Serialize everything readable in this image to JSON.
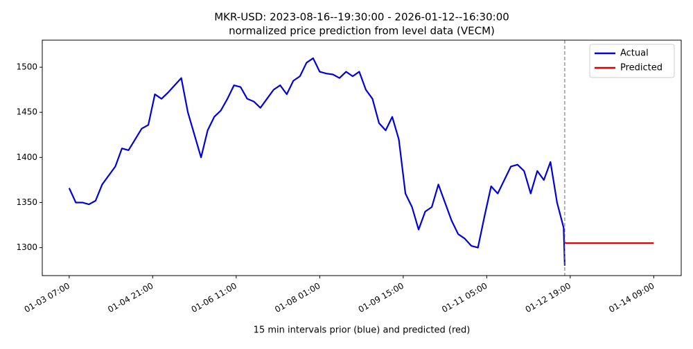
{
  "chart_data": {
    "type": "line",
    "title": "MKR-USD: 2023-08-16--19:30:00 - 2026-01-12--16:30:00",
    "subtitle": "normalized price prediction from level data (VECM)",
    "x_label": "15 min intervals prior (blue) and predicted (red)",
    "xlim": [
      "01-02 18:45",
      "01-14 21:30"
    ],
    "xticks": [
      "01-03 07:00",
      "01-04 21:00",
      "01-06 11:00",
      "01-08 01:00",
      "01-09 15:00",
      "01-11 05:00",
      "01-12 19:00",
      "01-14 09:00"
    ],
    "ylim": [
      1269,
      1530
    ],
    "yticks": [
      1300,
      1350,
      1400,
      1450,
      1500
    ],
    "vline": "01-12 16:30",
    "legend": "upper right",
    "series": [
      {
        "name": "Actual",
        "color": "#0000dd",
        "x": [
          "01-03 07:00",
          "01-03 10:00",
          "01-03 13:00",
          "01-03 16:00",
          "01-03 19:00",
          "01-03 22:00",
          "01-04 01:00",
          "01-04 04:00",
          "01-04 07:00",
          "01-04 10:00",
          "01-04 13:00",
          "01-04 16:00",
          "01-04 19:00",
          "01-04 22:00",
          "01-05 01:00",
          "01-05 04:00",
          "01-05 07:00",
          "01-05 10:00",
          "01-05 13:00",
          "01-05 16:00",
          "01-05 19:00",
          "01-05 22:00",
          "01-06 01:00",
          "01-06 04:00",
          "01-06 07:00",
          "01-06 10:00",
          "01-06 13:00",
          "01-06 16:00",
          "01-06 19:00",
          "01-06 22:00",
          "01-07 01:00",
          "01-07 04:00",
          "01-07 07:00",
          "01-07 10:00",
          "01-07 13:00",
          "01-07 16:00",
          "01-07 19:00",
          "01-07 22:00",
          "01-08 01:00",
          "01-08 04:00",
          "01-08 07:00",
          "01-08 10:00",
          "01-08 13:00",
          "01-08 16:00",
          "01-08 19:00",
          "01-08 22:00",
          "01-09 01:00",
          "01-09 04:00",
          "01-09 07:00",
          "01-09 10:00",
          "01-09 13:00",
          "01-09 16:00",
          "01-09 19:00",
          "01-09 22:00",
          "01-10 01:00",
          "01-10 04:00",
          "01-10 07:00",
          "01-10 10:00",
          "01-10 13:00",
          "01-10 16:00",
          "01-10 19:00",
          "01-10 22:00",
          "01-11 01:00",
          "01-11 04:00",
          "01-11 07:00",
          "01-11 10:00",
          "01-11 13:00",
          "01-11 16:00",
          "01-11 19:00",
          "01-11 22:00",
          "01-12 01:00",
          "01-12 04:00",
          "01-12 07:00",
          "01-12 10:00",
          "01-12 13:00",
          "01-12 16:00",
          "01-12 16:30"
        ],
        "values": [
          1366,
          1350,
          1350,
          1348,
          1352,
          1370,
          1380,
          1390,
          1410,
          1408,
          1420,
          1432,
          1436,
          1470,
          1465,
          1472,
          1480,
          1488,
          1450,
          1425,
          1400,
          1430,
          1445,
          1452,
          1465,
          1480,
          1478,
          1465,
          1462,
          1455,
          1465,
          1475,
          1480,
          1470,
          1485,
          1490,
          1505,
          1510,
          1495,
          1493,
          1492,
          1488,
          1495,
          1490,
          1495,
          1475,
          1465,
          1438,
          1430,
          1445,
          1420,
          1360,
          1345,
          1320,
          1340,
          1345,
          1370,
          1350,
          1330,
          1315,
          1310,
          1302,
          1300,
          1335,
          1368,
          1360,
          1375,
          1390,
          1392,
          1385,
          1360,
          1385,
          1375,
          1395,
          1350,
          1322,
          1280
        ]
      },
      {
        "name": "Predicted",
        "color": "#dd0000",
        "x": [
          "01-12 16:30",
          "01-12 17:00",
          "01-14 09:00"
        ],
        "values": [
          1306,
          1305,
          1305
        ]
      }
    ]
  }
}
